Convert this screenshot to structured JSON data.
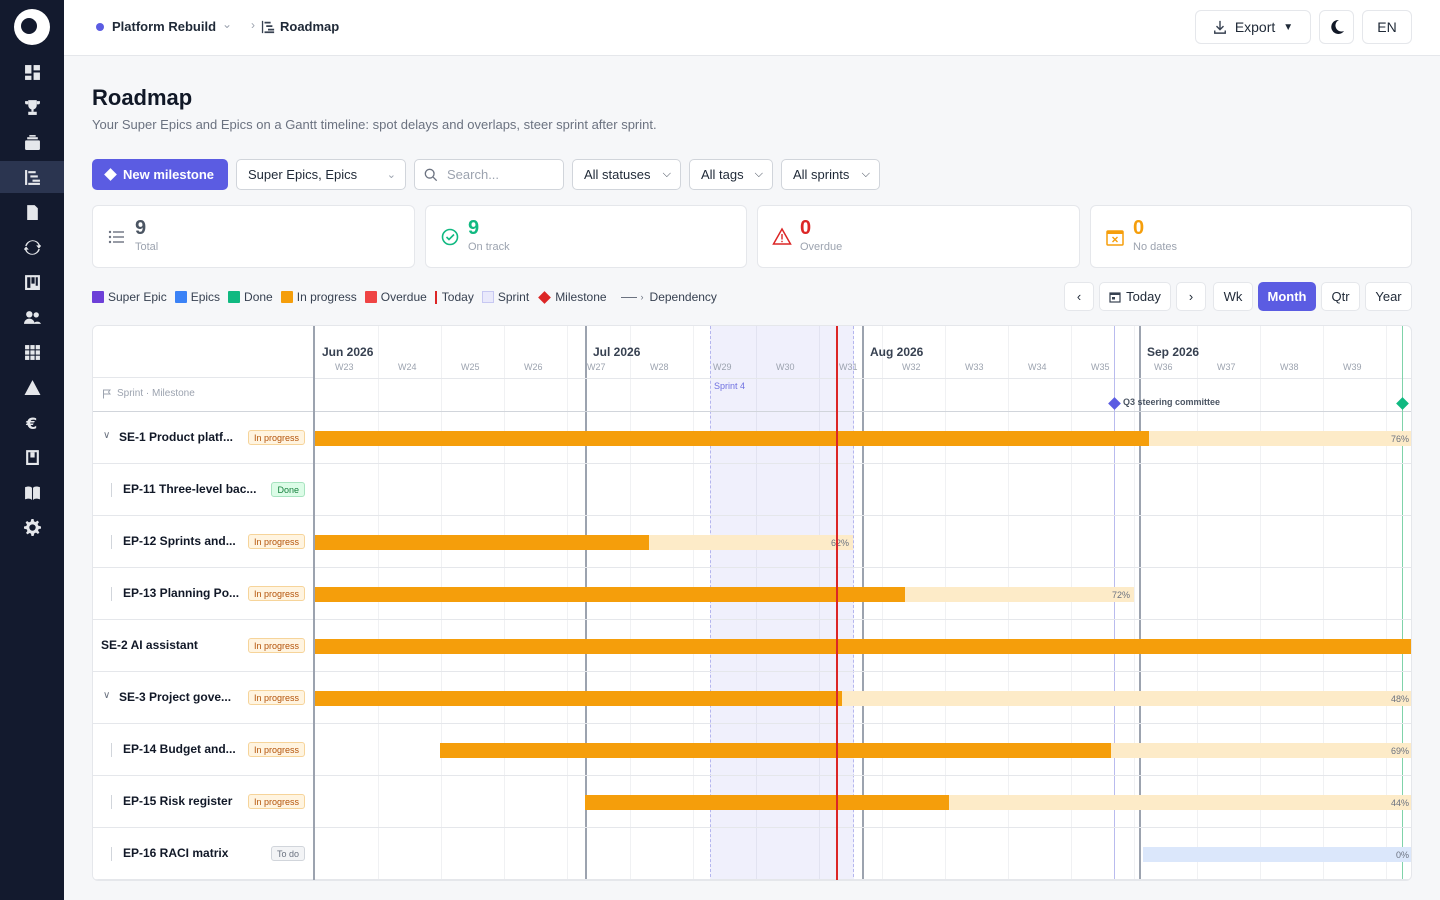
{
  "breadcrumb": {
    "project": "Platform Rebuild",
    "page": "Roadmap"
  },
  "topbar": {
    "export_label": "Export",
    "lang_label": "EN"
  },
  "page": {
    "title": "Roadmap",
    "subtitle": "Your Super Epics and Epics on a Gantt timeline: spot delays and overlaps, steer sprint after sprint."
  },
  "toolbar": {
    "new_milestone": "New milestone",
    "type_filter": "Super Epics, Epics",
    "search_placeholder": "Search...",
    "status_filter": "All statuses",
    "tags_filter": "All tags",
    "sprint_filter": "All sprints"
  },
  "stats": [
    {
      "value": "9",
      "label": "Total",
      "color": "#4b5563"
    },
    {
      "value": "9",
      "label": "On track",
      "color": "#10b981"
    },
    {
      "value": "0",
      "label": "Overdue",
      "color": "#dc2626"
    },
    {
      "value": "0",
      "label": "No dates",
      "color": "#f59e0b"
    }
  ],
  "legend": {
    "super_epic": "Super Epic",
    "epics": "Epics",
    "done": "Done",
    "in_progress": "In progress",
    "overdue": "Overdue",
    "today": "Today",
    "sprint": "Sprint",
    "milestone": "Milestone",
    "dependency": "Dependency"
  },
  "legend_colors": {
    "super_epic": "#6d3fd8",
    "epics": "#3b82f6",
    "done": "#10b981",
    "in_progress": "#f59e0b",
    "overdue": "#ef4444"
  },
  "nav": {
    "today": "Today",
    "week": "Wk",
    "month": "Month",
    "quarter": "Qtr",
    "year": "Year",
    "active_zoom": "Month"
  },
  "gantt": {
    "sprint_header": "Sprint · Milestone",
    "months": [
      "Jun 2026",
      "Jul 2026",
      "Aug 2026",
      "Sep 2026"
    ],
    "weeks": [
      "W23",
      "W24",
      "W25",
      "W26",
      "W27",
      "W28",
      "W29",
      "W30",
      "W31",
      "W32",
      "W33",
      "W34",
      "W35",
      "W36",
      "W37",
      "W38",
      "W39"
    ],
    "sprint_name": "Sprint 4",
    "milestones": [
      {
        "label": "Q3 steering committee",
        "color": "#5b5ce2"
      },
      {
        "label": "",
        "color": "#10b981"
      }
    ],
    "rows": [
      {
        "code": "SE-1",
        "name": "SE-1 Product platf...",
        "status": "In progress",
        "kind": "super",
        "expandable": true,
        "progress": 76,
        "pct_label": "76%"
      },
      {
        "code": "EP-11",
        "name": "EP-11 Three-level bac...",
        "status": "Done",
        "kind": "epic",
        "expandable": false,
        "progress": null,
        "pct_label": ""
      },
      {
        "code": "EP-12",
        "name": "EP-12 Sprints and...",
        "status": "In progress",
        "kind": "epic",
        "expandable": false,
        "progress": 62,
        "pct_label": "62%"
      },
      {
        "code": "EP-13",
        "name": "EP-13 Planning Po...",
        "status": "In progress",
        "kind": "epic",
        "expandable": false,
        "progress": 72,
        "pct_label": "72%"
      },
      {
        "code": "SE-2",
        "name": "SE-2 AI assistant",
        "status": "In progress",
        "kind": "super",
        "expandable": false,
        "progress": 100,
        "pct_label": ""
      },
      {
        "code": "SE-3",
        "name": "SE-3 Project gove...",
        "status": "In progress",
        "kind": "super",
        "expandable": true,
        "progress": 48,
        "pct_label": "48%"
      },
      {
        "code": "EP-14",
        "name": "EP-14 Budget and...",
        "status": "In progress",
        "kind": "epic",
        "expandable": false,
        "progress": 69,
        "pct_label": "69%"
      },
      {
        "code": "EP-15",
        "name": "EP-15 Risk register",
        "status": "In progress",
        "kind": "epic",
        "expandable": false,
        "progress": 44,
        "pct_label": "44%"
      },
      {
        "code": "EP-16",
        "name": "EP-16 RACI matrix",
        "status": "To do",
        "kind": "epic",
        "expandable": false,
        "progress": 0,
        "pct_label": "0%"
      }
    ]
  }
}
